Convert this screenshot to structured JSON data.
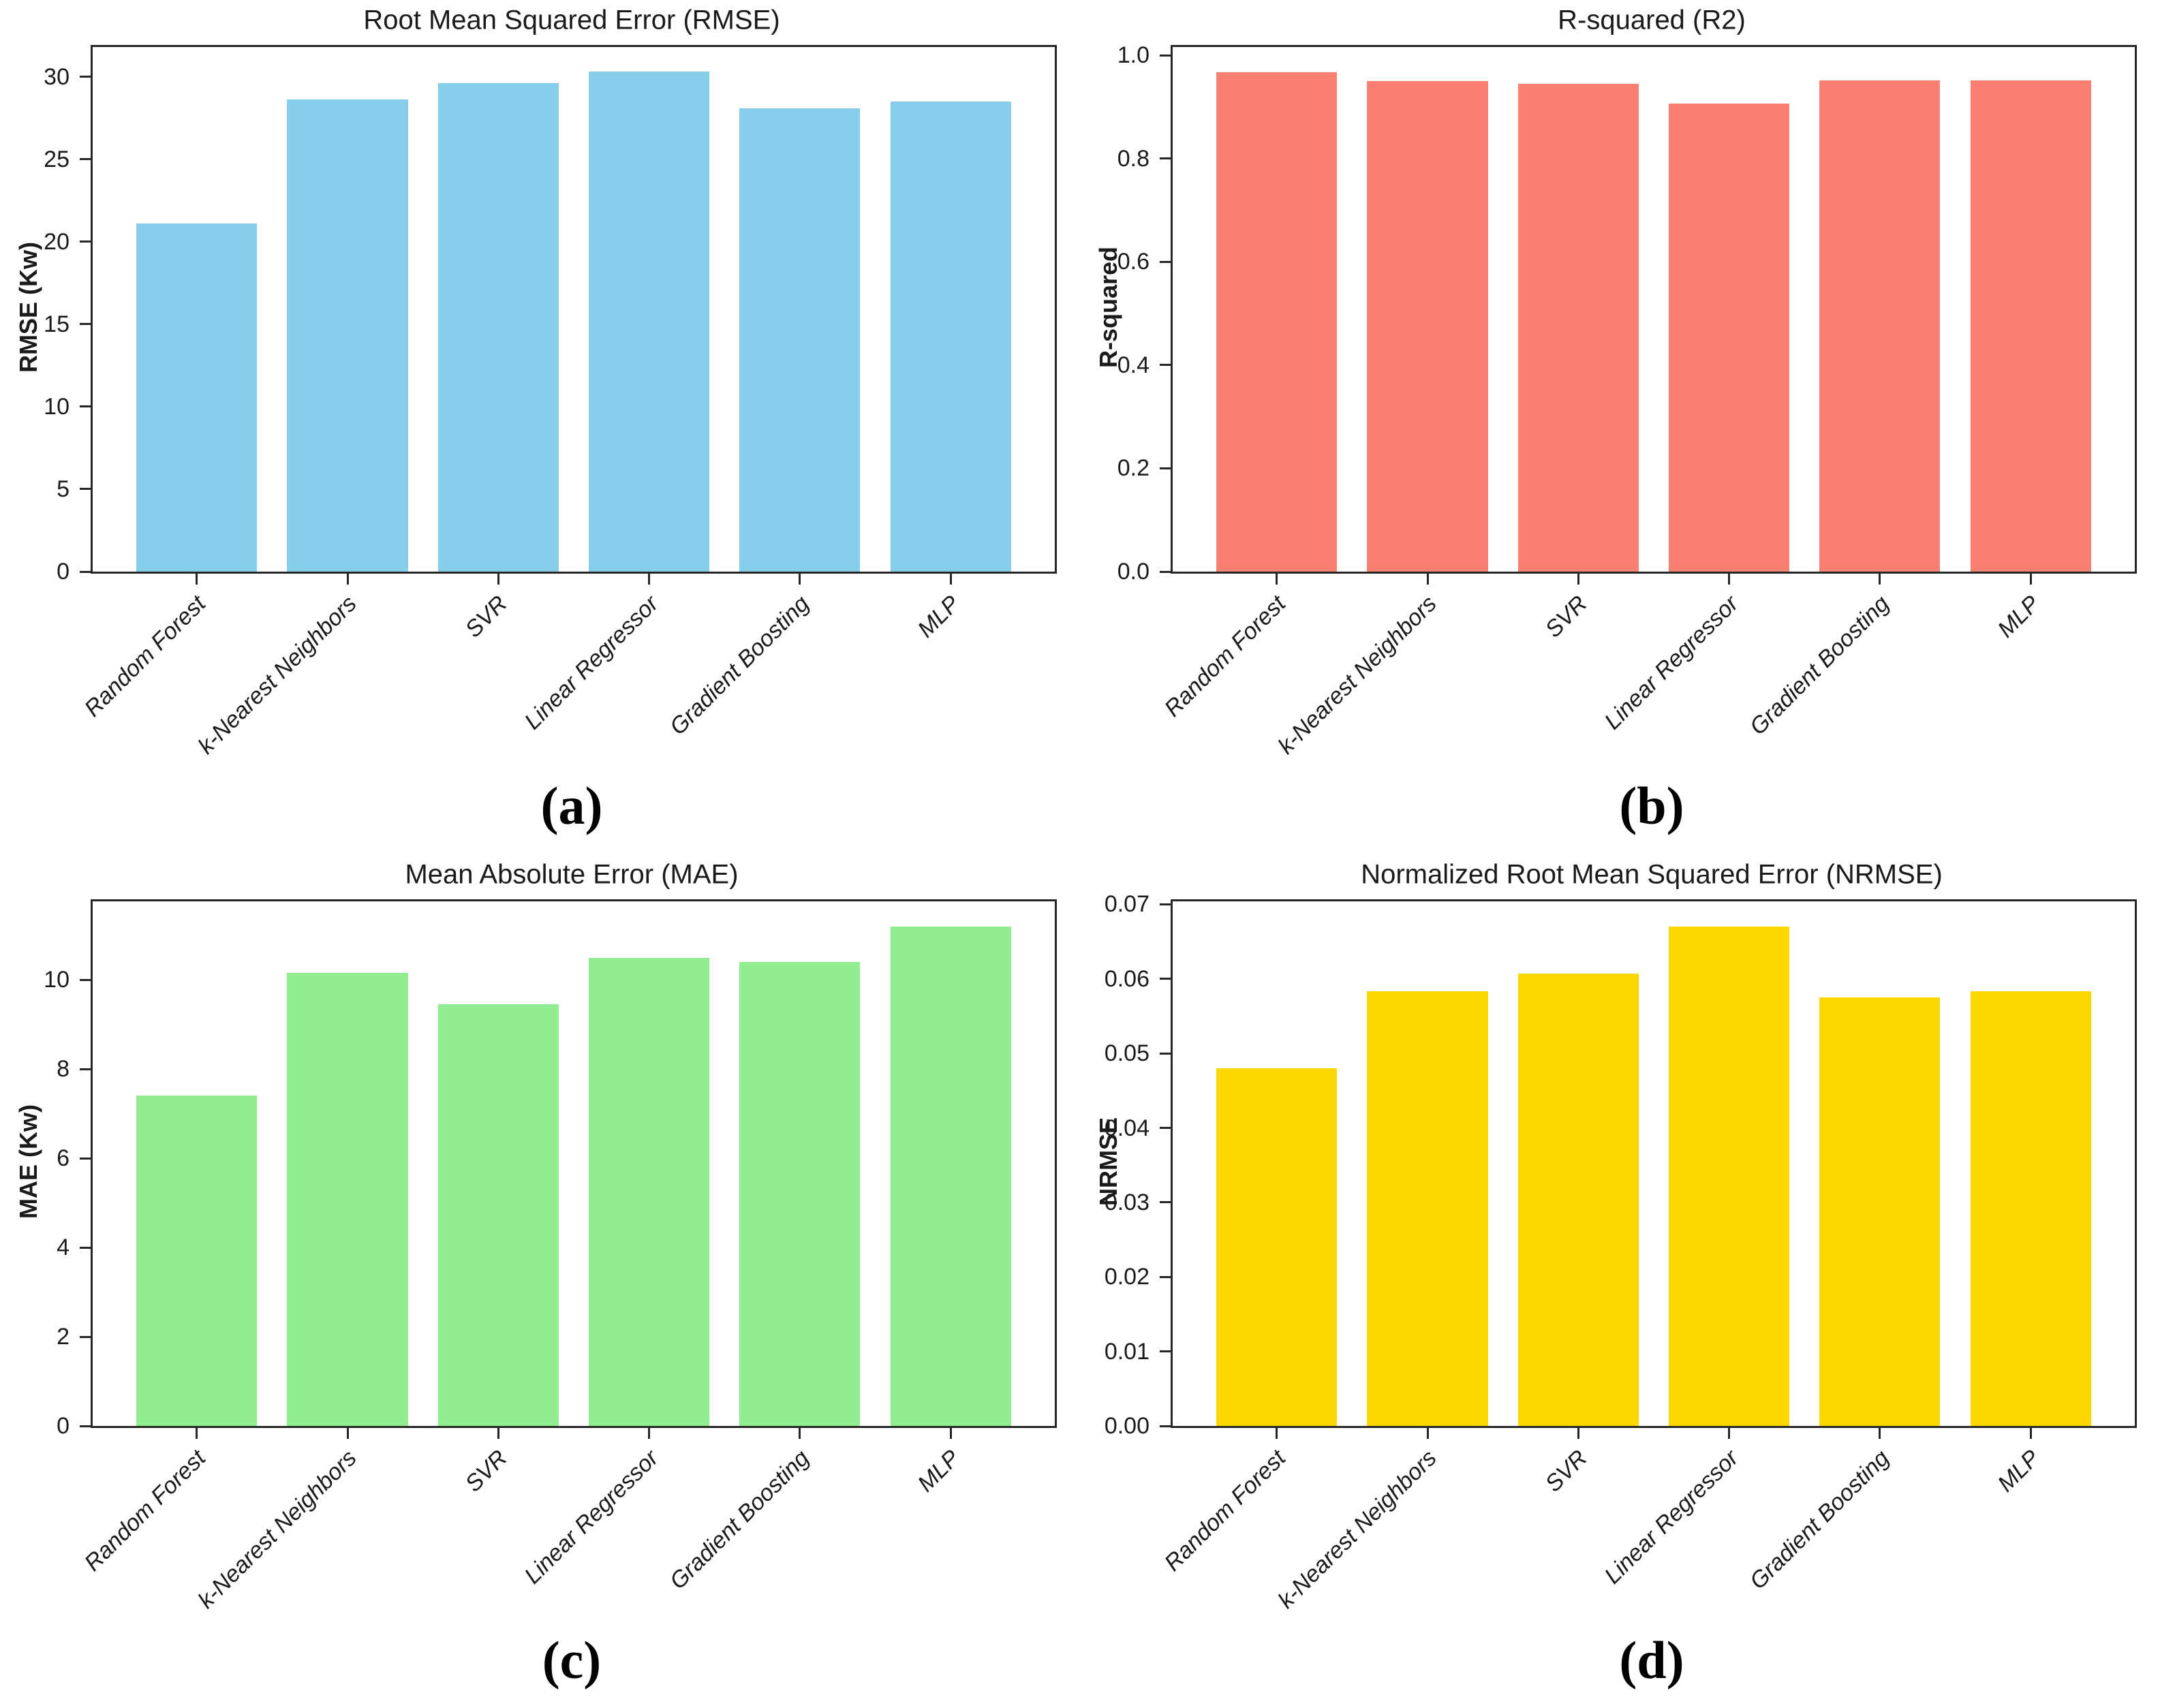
{
  "figure": {
    "background": "#ffffff",
    "text_color": "#1a1a1a"
  },
  "categories": [
    "Random Forest",
    "k-Nearest Neighbors",
    "SVR",
    "Linear Regressor",
    "Gradient Boosting",
    "MLP"
  ],
  "chart_data": [
    {
      "type": "bar",
      "title": "Root Mean Squared Error (RMSE)",
      "ylabel": "RMSE (Kw)",
      "xlabel": "",
      "caption": "(a)",
      "bar_color": "#87CEEB",
      "categories": [
        "Random Forest",
        "k-Nearest Neighbors",
        "SVR",
        "Linear Regressor",
        "Gradient Boosting",
        "MLP"
      ],
      "values": [
        21.1,
        28.6,
        29.6,
        30.3,
        28.1,
        28.5
      ],
      "ylim": [
        0,
        31.8
      ],
      "yticks": [
        {
          "v": 0,
          "label": "0"
        },
        {
          "v": 5,
          "label": "5"
        },
        {
          "v": 10,
          "label": "10"
        },
        {
          "v": 15,
          "label": "15"
        },
        {
          "v": 20,
          "label": "20"
        },
        {
          "v": 25,
          "label": "25"
        },
        {
          "v": 30,
          "label": "30"
        }
      ],
      "grid": false,
      "legend": false
    },
    {
      "type": "bar",
      "title": "R-squared (R2)",
      "ylabel": "R-squared",
      "xlabel": "",
      "caption": "(b)",
      "bar_color": "#FA8072",
      "categories": [
        "Random Forest",
        "k-Nearest Neighbors",
        "SVR",
        "Linear Regressor",
        "Gradient Boosting",
        "MLP"
      ],
      "values": [
        0.967,
        0.95,
        0.945,
        0.907,
        0.951,
        0.951
      ],
      "ylim": [
        0,
        1.016
      ],
      "yticks": [
        {
          "v": 0,
          "label": "0.0"
        },
        {
          "v": 0.2,
          "label": "0.2"
        },
        {
          "v": 0.4,
          "label": "0.4"
        },
        {
          "v": 0.6,
          "label": "0.6"
        },
        {
          "v": 0.8,
          "label": "0.8"
        },
        {
          "v": 1.0,
          "label": "1.0"
        }
      ],
      "grid": false,
      "legend": false
    },
    {
      "type": "bar",
      "title": "Mean Absolute Error (MAE)",
      "ylabel": "MAE (Kw)",
      "xlabel": "",
      "caption": "(c)",
      "bar_color": "#90EE90",
      "categories": [
        "Random Forest",
        "k-Nearest Neighbors",
        "SVR",
        "Linear Regressor",
        "Gradient Boosting",
        "MLP"
      ],
      "values": [
        7.4,
        10.15,
        9.45,
        10.5,
        10.4,
        11.2
      ],
      "ylim": [
        0,
        11.76
      ],
      "yticks": [
        {
          "v": 0,
          "label": "0"
        },
        {
          "v": 2,
          "label": "2"
        },
        {
          "v": 4,
          "label": "4"
        },
        {
          "v": 6,
          "label": "6"
        },
        {
          "v": 8,
          "label": "8"
        },
        {
          "v": 10,
          "label": "10"
        }
      ],
      "grid": false,
      "legend": false
    },
    {
      "type": "bar",
      "title": "Normalized Root Mean Squared Error (NRMSE)",
      "ylabel": "NRMSE",
      "xlabel": "",
      "caption": "(d)",
      "bar_color": "#FFD700",
      "categories": [
        "Random Forest",
        "k-Nearest Neighbors",
        "SVR",
        "Linear Regressor",
        "Gradient Boosting",
        "MLP"
      ],
      "values": [
        0.048,
        0.0583,
        0.0607,
        0.067,
        0.0575,
        0.0583
      ],
      "ylim": [
        0,
        0.0704
      ],
      "yticks": [
        {
          "v": 0,
          "label": "0.00"
        },
        {
          "v": 0.01,
          "label": "0.01"
        },
        {
          "v": 0.02,
          "label": "0.02"
        },
        {
          "v": 0.03,
          "label": "0.03"
        },
        {
          "v": 0.04,
          "label": "0.04"
        },
        {
          "v": 0.05,
          "label": "0.05"
        },
        {
          "v": 0.06,
          "label": "0.06"
        },
        {
          "v": 0.07,
          "label": "0.07"
        }
      ],
      "grid": false,
      "legend": false
    }
  ]
}
